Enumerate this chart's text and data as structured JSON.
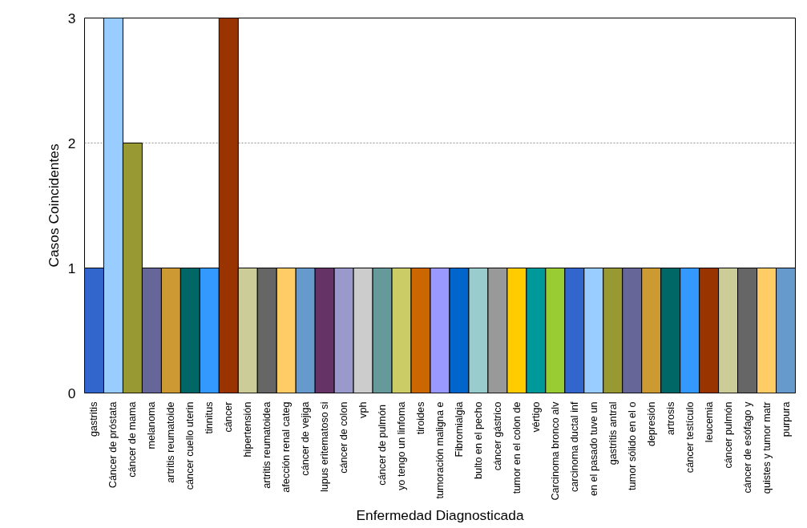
{
  "chart_data": {
    "type": "bar",
    "xlabel": "Enfermedad Diagnosticada",
    "ylabel": "Casos Coincidentes",
    "categories": [
      "gastritis",
      "Cáncer de próstata",
      "cáncer de mama",
      "melanoma",
      "artritis reumatoide",
      "cáncer cuello uterin",
      "tinnitus",
      "cáncer",
      "hipertensión",
      "artritis reumatoidea",
      "afección renal categ",
      "cáncer de vejiga",
      "lupus eritematoso si",
      "cáncer de colon",
      "vph",
      "cáncer  de pulmón",
      "yo tengo un linfoma",
      "tiroides",
      "tumoración maligna e",
      "Fibromialgia",
      "bulto en el pecho",
      "cáncer gástrico",
      "tumor en el colon de",
      "vértigo",
      "Carcinoma bronco alv",
      "carcinoma ductal inf",
      "en el pasado tuve un",
      "gastritis antral",
      "tumor sólido en el o",
      "depresión",
      "artrosis",
      "cáncer testículo",
      "leucemia",
      "cáncer pulmón",
      "cáncer de esófago y",
      "quistes y tumor matr",
      "purpura"
    ],
    "values": [
      1,
      3,
      2,
      1,
      1,
      1,
      1,
      3,
      1,
      1,
      1,
      1,
      1,
      1,
      1,
      1,
      1,
      1,
      1,
      1,
      1,
      1,
      1,
      1,
      1,
      1,
      1,
      1,
      1,
      1,
      1,
      1,
      1,
      1,
      1,
      1,
      1
    ],
    "colors": [
      "#3366cc",
      "#99ccff",
      "#999933",
      "#666699",
      "#cc9933",
      "#006666",
      "#3399ff",
      "#993300",
      "#cccc99",
      "#666666",
      "#ffcc66",
      "#6699cc",
      "#663366",
      "#9999cc",
      "#cccccc",
      "#669999",
      "#cccc66",
      "#cc6600",
      "#9999ff",
      "#0066cc",
      "#99cccc",
      "#999999",
      "#ffcc00",
      "#009999",
      "#99cc33",
      "#3366cc",
      "#99ccff",
      "#999933",
      "#666699",
      "#cc9933",
      "#006666",
      "#3399ff",
      "#993300",
      "#cccc99",
      "#666666",
      "#ffcc66",
      "#6699cc"
    ],
    "ylim": [
      0,
      3
    ],
    "yticks": [
      0,
      1,
      2,
      3
    ],
    "grid": "y"
  }
}
